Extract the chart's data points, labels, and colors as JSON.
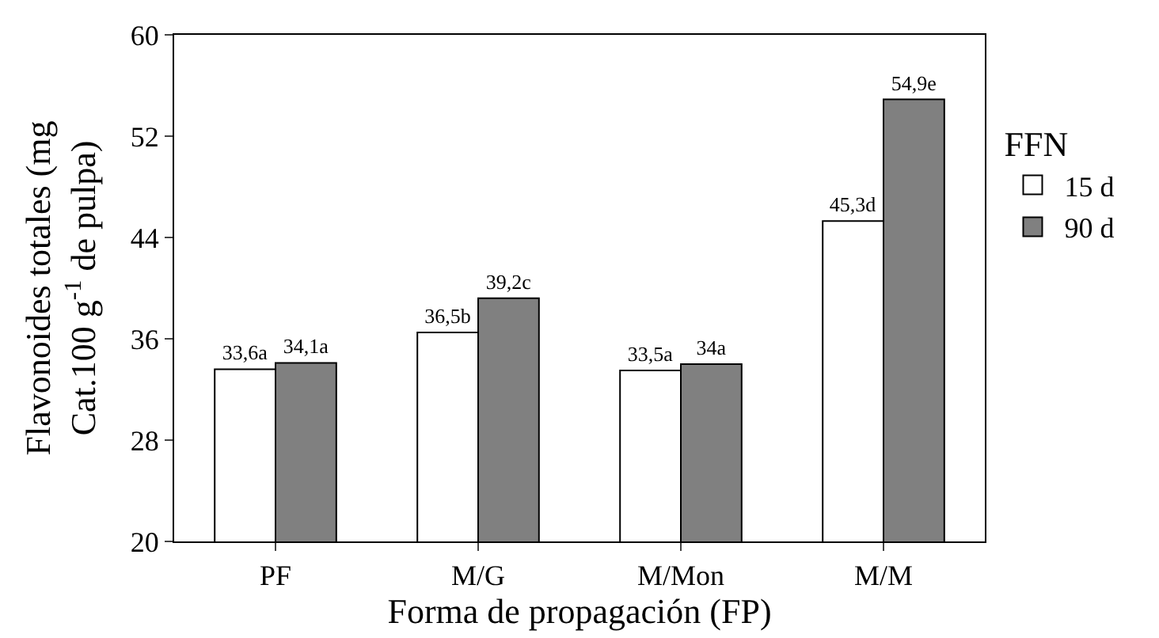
{
  "chart_data": {
    "type": "bar",
    "xlabel": "Forma de propagación (FP)",
    "ylabel": "Flavonoides totales (mg\nCat.100 g$^{-1}$ de pulpa)",
    "legend_title": "FFN",
    "categories": [
      "PF",
      "M/G",
      "M/Mon",
      "M/M"
    ],
    "series": [
      {
        "name": "15 d",
        "color": "#ffffff",
        "values": [
          33.6,
          36.5,
          33.5,
          45.3
        ],
        "value_labels": [
          "33,6a",
          "36,5b",
          "33,5a",
          "45,3d"
        ]
      },
      {
        "name": "90 d",
        "color": "#808080",
        "values": [
          34.1,
          39.2,
          34,
          54.9
        ],
        "value_labels": [
          "34,1a",
          "39,2c",
          "34a",
          "54,9e"
        ]
      }
    ],
    "ylim": [
      20,
      60
    ],
    "yticks": [
      20,
      28,
      36,
      44,
      52,
      60
    ],
    "grid": false,
    "legend": "right"
  }
}
